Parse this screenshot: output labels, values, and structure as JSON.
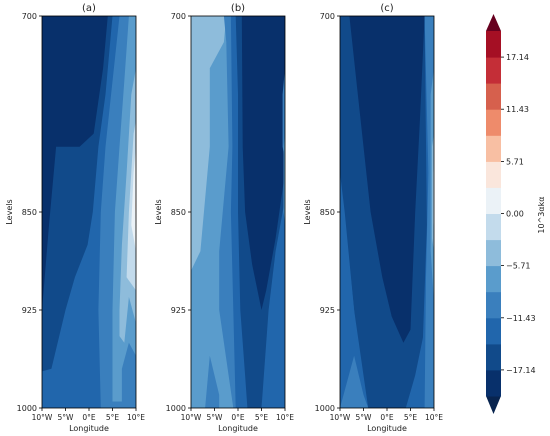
{
  "chart_data": [
    {
      "type": "heatmap",
      "panel_title": "(a)",
      "xlabel": "Longitude",
      "ylabel": "Levels",
      "x_ticks": [
        "10°W",
        "5°W",
        "0°E",
        "5°E",
        "10°E"
      ],
      "x_values": [
        -10,
        -5,
        0,
        5,
        10
      ],
      "y_ticks": [
        "700",
        "850",
        "925",
        "1000"
      ],
      "y_values": [
        700,
        850,
        925,
        1000
      ],
      "ylim": [
        1000,
        700
      ],
      "xlim": [
        -10,
        10
      ],
      "regions": [
        {
          "level": -20,
          "poly": [
            [
              -10,
              700
            ],
            [
              10,
              700
            ],
            [
              10,
              1000
            ],
            [
              -10,
              1000
            ]
          ]
        },
        {
          "level": -17.14,
          "poly": [
            [
              -10,
              1000
            ],
            [
              -10,
              925
            ],
            [
              -8.5,
              860
            ],
            [
              -7,
              800
            ],
            [
              -2,
              800
            ],
            [
              1,
              790
            ],
            [
              3,
              740
            ],
            [
              4,
              700
            ],
            [
              10,
              700
            ],
            [
              10,
              1000
            ]
          ]
        },
        {
          "level": -14.29,
          "poly": [
            [
              -10,
              1000
            ],
            [
              -10,
              972
            ],
            [
              -8,
              970
            ],
            [
              -5,
              925
            ],
            [
              -3,
              900
            ],
            [
              -0.3,
              875
            ],
            [
              0.8,
              850
            ],
            [
              2,
              800
            ],
            [
              3.5,
              760
            ],
            [
              5,
              700
            ],
            [
              10,
              700
            ],
            [
              10,
              1000
            ]
          ]
        },
        {
          "level": -11.43,
          "poly": [
            [
              2.5,
              1000
            ],
            [
              2,
              925
            ],
            [
              2.5,
              850
            ],
            [
              3.5,
              800
            ],
            [
              5,
              750
            ],
            [
              6.5,
              700
            ],
            [
              10,
              700
            ],
            [
              10,
              1000
            ]
          ]
        },
        {
          "level": -8.57,
          "poly": [
            [
              5,
              995
            ],
            [
              5,
              925
            ],
            [
              5.5,
              850
            ],
            [
              6.5,
              800
            ],
            [
              7.5,
              750
            ],
            [
              8.5,
              700
            ],
            [
              10,
              700
            ],
            [
              10,
              960
            ],
            [
              8.5,
              950
            ],
            [
              7,
              970
            ],
            [
              7,
              995
            ]
          ]
        },
        {
          "level": -5.71,
          "poly": [
            [
              6.5,
              945
            ],
            [
              6.5,
              925
            ],
            [
              7,
              875
            ],
            [
              8,
              820
            ],
            [
              9,
              760
            ],
            [
              10,
              740
            ],
            [
              10,
              935
            ],
            [
              8.5,
              915
            ],
            [
              7.5,
              950
            ]
          ]
        },
        {
          "level": -2.86,
          "poly": [
            [
              8,
              900
            ],
            [
              8.5,
              850
            ],
            [
              9.5,
              790
            ],
            [
              10,
              780
            ],
            [
              10,
              910
            ]
          ]
        },
        {
          "level": 0,
          "poly": [
            [
              9,
              860
            ],
            [
              9.5,
              820
            ],
            [
              10,
              800
            ],
            [
              10,
              880
            ]
          ]
        },
        {
          "level": 2.86,
          "poly": [
            [
              9.8,
              845
            ],
            [
              10,
              830
            ],
            [
              10,
              858
            ]
          ]
        }
      ]
    },
    {
      "type": "heatmap",
      "panel_title": "(b)",
      "xlabel": "Longitude",
      "ylabel": "Levels",
      "x_ticks": [
        "10°W",
        "5°W",
        "0°E",
        "5°E",
        "10°E"
      ],
      "x_values": [
        -10,
        -5,
        0,
        5,
        10
      ],
      "y_ticks": [
        "700",
        "850",
        "925",
        "1000"
      ],
      "y_values": [
        700,
        850,
        925,
        1000
      ],
      "ylim": [
        1000,
        700
      ],
      "xlim": [
        -10,
        10
      ],
      "regions": [
        {
          "level": -8.57,
          "poly": [
            [
              -10,
              700
            ],
            [
              10,
              700
            ],
            [
              10,
              1000
            ],
            [
              -10,
              1000
            ]
          ]
        },
        {
          "level": -5.71,
          "poly": [
            [
              -10,
              700
            ],
            [
              -2.5,
              700
            ],
            [
              -3,
              720
            ],
            [
              -6,
              740
            ],
            [
              -6,
              800
            ],
            [
              -8,
              880
            ],
            [
              -10,
              895
            ]
          ]
        },
        {
          "level": -11.43,
          "poly": [
            [
              -3,
              700
            ],
            [
              10,
              700
            ],
            [
              10,
              1000
            ],
            [
              -4,
              1000
            ],
            [
              -4,
              990
            ],
            [
              -6,
              960
            ],
            [
              -7,
              1000
            ],
            [
              -1,
              1000
            ],
            [
              -4,
              925
            ],
            [
              -4,
              880
            ],
            [
              -2,
              800
            ],
            [
              -2.5,
              720
            ]
          ]
        },
        {
          "level": -14.29,
          "poly": [
            [
              -1.5,
              700
            ],
            [
              10,
              700
            ],
            [
              10,
              1000
            ],
            [
              -0.5,
              1000
            ],
            [
              -1,
              925
            ],
            [
              -1.5,
              850
            ],
            [
              -1.2,
              800
            ]
          ]
        },
        {
          "level": -17.14,
          "poly": [
            [
              -0.5,
              700
            ],
            [
              10,
              700
            ],
            [
              10,
              1000
            ],
            [
              2,
              1000
            ],
            [
              1.5,
              975
            ],
            [
              0.5,
              925
            ],
            [
              0,
              850
            ],
            [
              0,
              760
            ]
          ]
        },
        {
          "level": -20,
          "poly": [
            [
              0.8,
              700
            ],
            [
              10,
              700
            ],
            [
              10,
              820
            ],
            [
              8,
              870
            ],
            [
              6,
              910
            ],
            [
              5,
              925
            ],
            [
              3,
              890
            ],
            [
              1.5,
              850
            ],
            [
              1,
              800
            ]
          ]
        },
        {
          "level": -14.29,
          "poly": [
            [
              5,
              1000
            ],
            [
              6.5,
              925
            ],
            [
              8,
              880
            ],
            [
              10,
              840
            ],
            [
              10,
              1000
            ]
          ]
        },
        {
          "level": -11.43,
          "poly": [
            [
              9.5,
              760
            ],
            [
              10,
              740
            ],
            [
              10,
              810
            ],
            [
              9.5,
              800
            ]
          ]
        },
        {
          "level": -8.57,
          "poly": [
            [
              9.7,
              800
            ],
            [
              10,
              790
            ],
            [
              10,
              860
            ],
            [
              9.7,
              850
            ]
          ]
        }
      ]
    },
    {
      "type": "heatmap",
      "panel_title": "(c)",
      "xlabel": "Longitude",
      "ylabel": "Levels",
      "x_ticks": [
        "10°W",
        "5°W",
        "0°E",
        "5°E",
        "10°E"
      ],
      "x_values": [
        -10,
        -5,
        0,
        5,
        10
      ],
      "y_ticks": [
        "700",
        "850",
        "925",
        "1000"
      ],
      "y_values": [
        700,
        850,
        925,
        1000
      ],
      "ylim": [
        1000,
        700
      ],
      "xlim": [
        -10,
        10
      ],
      "regions": [
        {
          "level": -14.29,
          "poly": [
            [
              -10,
              700
            ],
            [
              10,
              700
            ],
            [
              10,
              1000
            ],
            [
              -10,
              1000
            ]
          ]
        },
        {
          "level": -17.14,
          "poly": [
            [
              -10,
              700
            ],
            [
              8,
              700
            ],
            [
              8.5,
              860
            ],
            [
              7.5,
              960
            ],
            [
              6,
              990
            ],
            [
              6,
              1000
            ],
            [
              -4,
              1000
            ],
            [
              -7,
              925
            ],
            [
              -9,
              850
            ],
            [
              -10,
              820
            ]
          ]
        },
        {
          "level": -20,
          "poly": [
            [
              -8,
              700
            ],
            [
              8,
              700
            ],
            [
              7,
              780
            ],
            [
              6,
              850
            ],
            [
              5,
              940
            ],
            [
              3.5,
              950
            ],
            [
              1,
              930
            ],
            [
              -1,
              900
            ],
            [
              -3.5,
              850
            ],
            [
              -5,
              800
            ],
            [
              -6.5,
              750
            ]
          ]
        },
        {
          "level": -14.29,
          "poly": [
            [
              -10,
              1000
            ],
            [
              -10,
              930
            ],
            [
              -8,
              890
            ],
            [
              -6,
              960
            ],
            [
              -4,
              1000
            ]
          ]
        },
        {
          "level": -11.43,
          "poly": [
            [
              -10,
              1000
            ],
            [
              -7,
              960
            ],
            [
              -5,
              990
            ],
            [
              -4,
              1000
            ]
          ]
        },
        {
          "level": -14.29,
          "poly": [
            [
              4,
              1000
            ],
            [
              6,
              975
            ],
            [
              8,
              940
            ],
            [
              8,
              1000
            ]
          ]
        },
        {
          "level": -11.43,
          "poly": [
            [
              8,
              700
            ],
            [
              10,
              700
            ],
            [
              10,
              1000
            ],
            [
              8,
              1000
            ],
            [
              8.3,
              900
            ],
            [
              8.8,
              820
            ]
          ]
        },
        {
          "level": -8.57,
          "poly": [
            [
              9.3,
              760
            ],
            [
              10,
              740
            ],
            [
              10,
              920
            ],
            [
              9.3,
              880
            ]
          ]
        },
        {
          "level": -5.71,
          "poly": [
            [
              9.6,
              800
            ],
            [
              10,
              790
            ],
            [
              10,
              880
            ],
            [
              9.6,
              870
            ]
          ]
        },
        {
          "level": -2.86,
          "poly": [
            [
              9.85,
              820
            ],
            [
              10,
              810
            ],
            [
              10,
              865
            ],
            [
              9.85,
              858
            ]
          ]
        }
      ]
    }
  ],
  "colorbar": {
    "label": "10^3αkα",
    "tick_labels": [
      "17.14",
      "11.43",
      "5.71",
      "0.00",
      "−5.71",
      "−11.43",
      "−17.14"
    ],
    "tick_values": [
      17.14,
      11.43,
      5.71,
      0,
      -5.71,
      -11.43,
      -17.14
    ],
    "levels": [
      -20,
      -17.14,
      -14.29,
      -11.43,
      -8.57,
      -5.71,
      -2.86,
      0,
      2.86,
      5.71,
      8.57,
      11.43,
      14.29,
      17.14,
      20
    ],
    "colors": [
      "#08306b",
      "#114a8a",
      "#2166ac",
      "#3a7fbd",
      "#5a9ccc",
      "#8ebcdb",
      "#c3dbec",
      "#ebf2f7",
      "#fae6dc",
      "#f8bfa3",
      "#ee8b6b",
      "#d6604d",
      "#c42e37",
      "#a50f24",
      "#67001f"
    ],
    "under_color": "#08244f",
    "over_color": "#67001f"
  }
}
